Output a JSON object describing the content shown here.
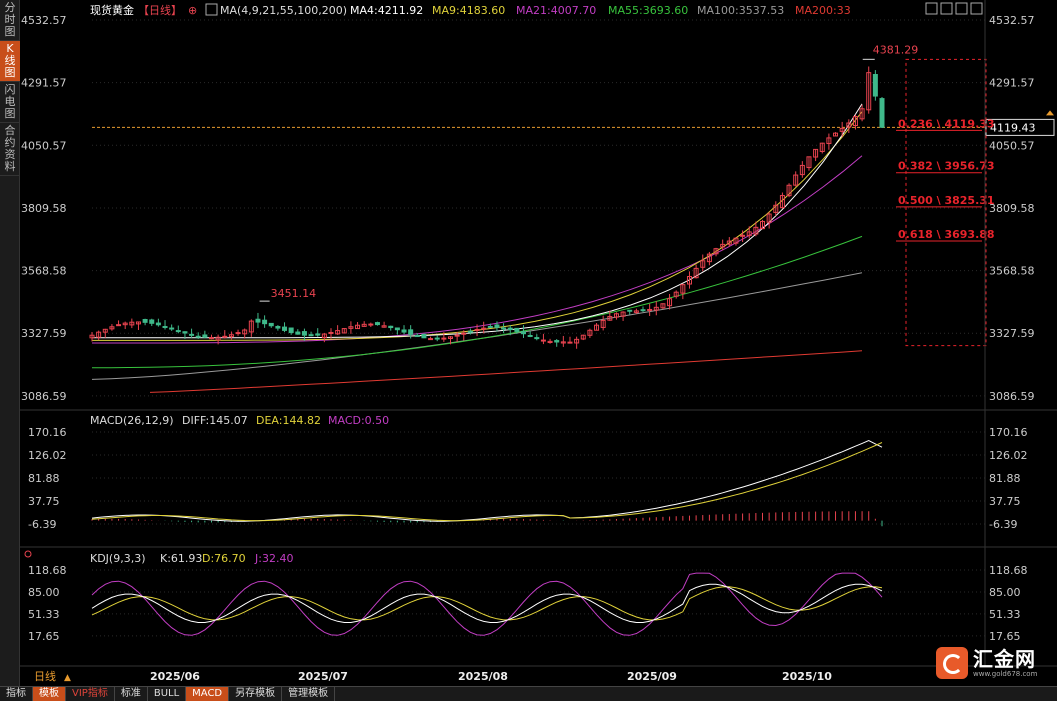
{
  "left_tabs": [
    "分时图",
    "K线图",
    "闪电图",
    "合约资料"
  ],
  "left_active": 1,
  "header": {
    "title": "现货黄金",
    "period": "【日线】",
    "ma_label": "MA(4,9,21,55,100,200)",
    "ma4": "MA4:4211.92",
    "ma9": "MA9:4183.60",
    "ma21": "MA21:4007.70",
    "ma55": "MA55:3693.60",
    "ma100": "MA100:3537.53",
    "ma200": "MA200:33"
  },
  "colors": {
    "up": "#e8434f",
    "down": "#3fb98a",
    "ma4": "#ffffff",
    "ma9": "#e0d23a",
    "ma21": "#c23ec4",
    "ma55": "#38c33d",
    "ma100": "#9a9a9a",
    "ma200": "#e03a32",
    "fib": "#e8232b",
    "current": "#e89b2e"
  },
  "price_axis": [
    "4532.57",
    "4291.57",
    "4050.57",
    "3809.58",
    "3568.58",
    "3327.59",
    "3086.59"
  ],
  "current_price": "4119.43",
  "annotations": {
    "high": "4381.29",
    "local_high": "3451.14"
  },
  "fib_levels": [
    {
      "label": "0.236 \\ 4119.33",
      "value": 4119.33
    },
    {
      "label": "0.382 \\ 3956.73",
      "value": 3956.73
    },
    {
      "label": "0.500 \\ 3825.31",
      "value": 3825.31
    },
    {
      "label": "0.618 \\ 3693.88",
      "value": 3693.88
    }
  ],
  "macd": {
    "label": "MACD(26,12,9)",
    "diff": "DIFF:145.07",
    "dea": "DEA:144.82",
    "macd": "MACD:0.50",
    "axis": [
      "170.16",
      "126.02",
      "81.88",
      "37.75",
      "-6.39"
    ]
  },
  "kdj": {
    "label": "KDJ(9,3,3)",
    "k": "K:61.93",
    "d": "D:76.70",
    "j": "J:32.40",
    "axis": [
      "118.68",
      "85.00",
      "51.33",
      "17.65"
    ]
  },
  "x_axis": [
    "2025/06",
    "2025/07",
    "2025/08",
    "2025/09",
    "2025/10"
  ],
  "period_selector": "日线",
  "bottom_tabs": [
    "指标",
    "模板",
    "VIP指标",
    "标准",
    "BULL",
    "MACD",
    "另存模板",
    "管理模板"
  ],
  "bottom_active": [
    1,
    5
  ],
  "watermark": {
    "title": "汇金网",
    "url": "www.gold678.com"
  },
  "chart_data": {
    "type": "candlestick",
    "title": "现货黄金",
    "series": [
      {
        "name": "MA4",
        "last": 4211.92
      },
      {
        "name": "MA9",
        "last": 4183.6
      },
      {
        "name": "MA21",
        "last": 4007.7
      },
      {
        "name": "MA55",
        "last": 3693.6
      },
      {
        "name": "MA100",
        "last": 3537.53
      }
    ],
    "ylim": [
      3040,
      4532.57
    ],
    "high": 4381.29,
    "local_high": 3451.14,
    "current": 4119.43,
    "macd": {
      "diff": 145.07,
      "dea": 144.82,
      "macd": 0.5,
      "ylim": [
        -6.39,
        170.16
      ]
    },
    "kdj": {
      "k": 61.93,
      "d": 76.7,
      "j": 32.4,
      "ylim": [
        17.65,
        118.68
      ]
    },
    "x_labels": [
      "2025/06",
      "2025/07",
      "2025/08",
      "2025/09",
      "2025/10"
    ]
  }
}
